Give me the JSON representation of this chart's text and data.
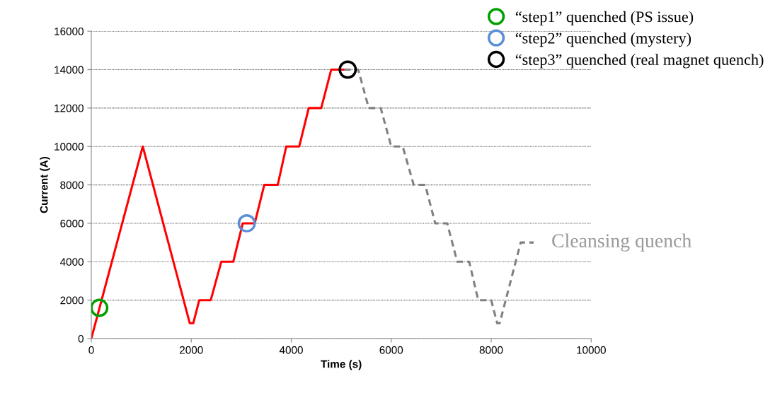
{
  "chart_data": {
    "type": "line",
    "xlabel": "Time (s)",
    "ylabel": "Current (A)",
    "xlim": [
      0,
      10000
    ],
    "xticks": [
      0,
      2000,
      4000,
      6000,
      8000,
      10000
    ],
    "ylim": [
      0,
      16000
    ],
    "yticks": [
      0,
      2000,
      4000,
      6000,
      8000,
      10000,
      12000,
      14000,
      16000
    ],
    "grid": "y",
    "legend": "top right",
    "series": [
      {
        "color": "#ff0000",
        "line_style": "solid",
        "marker": "none",
        "x": [
          0,
          1030,
          1970,
          2040,
          2160,
          2390,
          2600,
          2840,
          3030,
          3270,
          3460,
          3730,
          3900,
          4160,
          4350,
          4600,
          4800,
          5060
        ],
        "values": [
          0,
          10000,
          800,
          800,
          2000,
          2000,
          4000,
          4000,
          6000,
          6000,
          8000,
          8000,
          10000,
          10000,
          12000,
          12000,
          14000,
          14000
        ]
      },
      {
        "color": "#808080",
        "line_style": "dashed",
        "marker": "none",
        "x": [
          5060,
          5340,
          5550,
          5790,
          6000,
          6230,
          6450,
          6680,
          6880,
          7120,
          7320,
          7560,
          7740,
          8000,
          8120,
          8170,
          8590,
          8850
        ],
        "values": [
          14000,
          14000,
          12000,
          12000,
          10000,
          10000,
          8000,
          8000,
          6000,
          6000,
          4000,
          4000,
          2000,
          2000,
          800,
          800,
          5000,
          5000
        ]
      },
      {
        "type": "scatter",
        "name": "“step1” quenched (PS issue)",
        "color": "#00a000",
        "marker": "circle",
        "x": [
          160
        ],
        "values": [
          1600
        ]
      },
      {
        "type": "scatter",
        "name": "“step2” quenched (mystery)",
        "color": "#5b8fd6",
        "marker": "circle",
        "x": [
          3110
        ],
        "values": [
          6000
        ]
      },
      {
        "type": "scatter",
        "name": "“step3” quenched (real magnet quench)",
        "color": "#000000",
        "marker": "circle",
        "x": [
          5130
        ],
        "values": [
          14000
        ]
      }
    ],
    "annotations": [
      {
        "text": "Cleansing quench",
        "x": 8850,
        "y": 5000
      }
    ]
  }
}
